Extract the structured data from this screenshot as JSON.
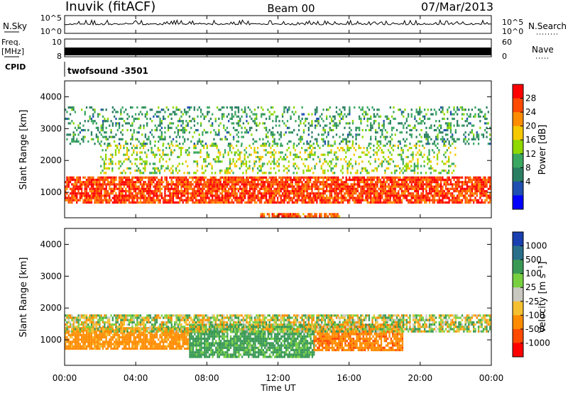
{
  "header": {
    "station": "Inuvik (fitACF)",
    "beam": "Beam 00",
    "date": "07/Mar/2013"
  },
  "noise_panel": {
    "left_label": "N.Sky",
    "right_label": "N.Search",
    "y_ticks": [
      "10^5",
      "10^0"
    ]
  },
  "freq_panel": {
    "left_label_line1": "Freq.",
    "left_label_line2": "[MHz]",
    "left_ticks": [
      "10",
      "8"
    ],
    "right_label": "Nave",
    "right_ticks": [
      "60",
      "0"
    ]
  },
  "cpid": {
    "label": "CPID",
    "value": "twofsound -3501"
  },
  "power_panel": {
    "ylabel": "Slant Range [km]",
    "colorbar_label": "Power [dB]",
    "colorbar_ticks": [
      "28",
      "24",
      "20",
      "16",
      "12",
      "8",
      "4"
    ],
    "colorbar_colors": [
      "#ff0000",
      "#ff4a00",
      "#ff8c00",
      "#f5c800",
      "#8fd800",
      "#3aa860",
      "#2a7f62",
      "#1f4fb0",
      "#0000ff"
    ]
  },
  "velocity_panel": {
    "ylabel": "Slant Range [km]",
    "colorbar_label": "Velocity [m s⁻¹]",
    "colorbar_ticks": [
      "1000",
      "500",
      "100",
      "25",
      "-25",
      "-100",
      "-500",
      "-1000"
    ],
    "colorbar_colors": [
      "#1a3fb0",
      "#2a6f8a",
      "#3a9a55",
      "#78d040",
      "#c8c8c0",
      "#f5c030",
      "#ff8c00",
      "#ff4a00",
      "#ff0000"
    ]
  },
  "time_axis": {
    "xlabel": "Time UT",
    "ticks": [
      "00:00",
      "04:00",
      "08:00",
      "12:00",
      "16:00",
      "20:00",
      "00:00"
    ]
  },
  "chart_data": [
    {
      "type": "line",
      "name": "noise",
      "title": "Inuvik (fitACF)",
      "xlabel": "Time UT",
      "x_ticks": [
        "00:00",
        "04:00",
        "08:00",
        "12:00",
        "16:00",
        "20:00",
        "00:00"
      ],
      "y_ticks": [
        "10^0",
        "10^5"
      ],
      "note": "N.Sky trace near the top of the 10^0-10^5 range"
    },
    {
      "type": "heatmap",
      "name": "power",
      "xlabel": "Time UT",
      "ylabel": "Slant Range [km]",
      "x_ticks": [
        "00:00",
        "04:00",
        "08:00",
        "12:00",
        "16:00",
        "20:00",
        "00:00"
      ],
      "y_ticks": [
        1000,
        2000,
        3000,
        4000
      ],
      "ylim": [
        200,
        4500
      ],
      "colorbar": {
        "label": "Power [dB]",
        "ticks": [
          4,
          8,
          12,
          16,
          20,
          24,
          28
        ],
        "range": [
          0,
          30
        ]
      },
      "features": [
        {
          "x_range_hours": [
            0,
            24
          ],
          "range_km": [
            700,
            1500
          ],
          "power_db": 27
        },
        {
          "x_range_hours": [
            2,
            22
          ],
          "range_km": [
            1600,
            2500
          ],
          "power_db": 15
        },
        {
          "x_range_hours": [
            0,
            24
          ],
          "range_km": [
            2500,
            3700
          ],
          "power_db": 10
        },
        {
          "x_range_hours": [
            11,
            15.5
          ],
          "range_km": [
            200,
            350
          ],
          "power_db": 25
        }
      ]
    },
    {
      "type": "heatmap",
      "name": "velocity",
      "xlabel": "Time UT",
      "ylabel": "Slant Range [km]",
      "x_ticks": [
        "00:00",
        "04:00",
        "08:00",
        "12:00",
        "16:00",
        "20:00",
        "00:00"
      ],
      "y_ticks": [
        1000,
        2000,
        3000,
        4000
      ],
      "ylim": [
        200,
        4500
      ],
      "colorbar": {
        "label": "Velocity [m s⁻¹]",
        "ticks": [
          1000,
          500,
          100,
          25,
          -25,
          -100,
          -500,
          -1000
        ]
      },
      "features": [
        {
          "x_range_hours": [
            0,
            7
          ],
          "range_km": [
            700,
            1400
          ],
          "velocity_ms": -150
        },
        {
          "x_range_hours": [
            7,
            14
          ],
          "range_km": [
            500,
            1500
          ],
          "velocity_ms": 120
        },
        {
          "x_range_hours": [
            14,
            19
          ],
          "range_km": [
            700,
            1500
          ],
          "velocity_ms": -250
        },
        {
          "x_range_hours": [
            0,
            24
          ],
          "range_km": [
            1300,
            1800
          ],
          "velocity_ms": 0
        }
      ]
    }
  ]
}
